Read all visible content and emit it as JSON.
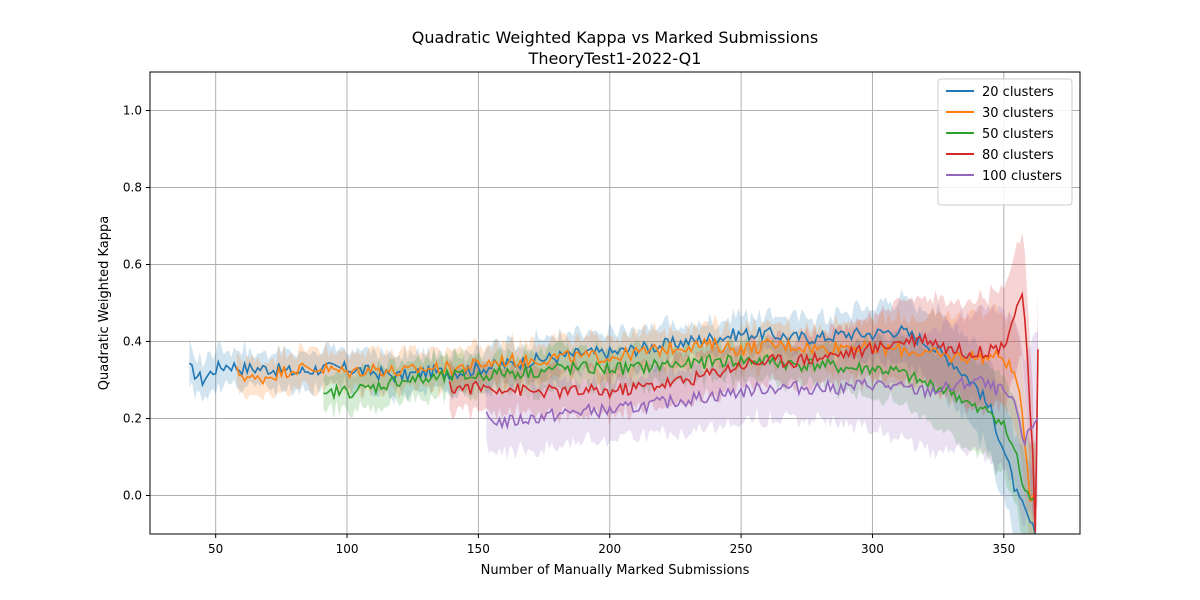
{
  "chart_data": {
    "type": "line",
    "title": "Quadratic Weighted Kappa vs Marked Submissions",
    "subtitle": "TheoryTest1-2022-Q1",
    "xlabel": "Number of Manually Marked Submissions",
    "ylabel": "Quadratic Weighted Kappa",
    "xlim": [
      25,
      379
    ],
    "ylim": [
      -0.1,
      1.1
    ],
    "xticks": [
      50,
      100,
      150,
      200,
      250,
      300,
      350
    ],
    "yticks": [
      0.0,
      0.2,
      0.4,
      0.6,
      0.8,
      1.0
    ],
    "grid": true,
    "legend_position": "top-right",
    "series": [
      {
        "name": "20 clusters",
        "color": "#1f77b4",
        "band": 0.05,
        "points": [
          [
            40,
            0.33
          ],
          [
            45,
            0.3
          ],
          [
            50,
            0.33
          ],
          [
            55,
            0.34
          ],
          [
            60,
            0.33
          ],
          [
            70,
            0.33
          ],
          [
            80,
            0.32
          ],
          [
            90,
            0.33
          ],
          [
            100,
            0.33
          ],
          [
            110,
            0.32
          ],
          [
            120,
            0.31
          ],
          [
            130,
            0.32
          ],
          [
            140,
            0.32
          ],
          [
            150,
            0.33
          ],
          [
            160,
            0.34
          ],
          [
            170,
            0.35
          ],
          [
            180,
            0.36
          ],
          [
            190,
            0.37
          ],
          [
            200,
            0.37
          ],
          [
            210,
            0.38
          ],
          [
            220,
            0.39
          ],
          [
            230,
            0.4
          ],
          [
            240,
            0.41
          ],
          [
            250,
            0.42
          ],
          [
            260,
            0.42
          ],
          [
            270,
            0.41
          ],
          [
            280,
            0.41
          ],
          [
            290,
            0.42
          ],
          [
            300,
            0.42
          ],
          [
            310,
            0.43
          ],
          [
            320,
            0.4
          ],
          [
            330,
            0.35
          ],
          [
            340,
            0.28
          ],
          [
            345,
            0.22
          ],
          [
            350,
            0.12
          ],
          [
            355,
            0.0
          ],
          [
            360,
            -0.07
          ],
          [
            362,
            -0.1
          ]
        ]
      },
      {
        "name": "30 clusters",
        "color": "#ff7f0e",
        "band": 0.05,
        "points": [
          [
            58,
            0.32
          ],
          [
            65,
            0.3
          ],
          [
            70,
            0.31
          ],
          [
            80,
            0.33
          ],
          [
            90,
            0.33
          ],
          [
            100,
            0.32
          ],
          [
            110,
            0.33
          ],
          [
            120,
            0.32
          ],
          [
            130,
            0.33
          ],
          [
            140,
            0.33
          ],
          [
            150,
            0.34
          ],
          [
            160,
            0.35
          ],
          [
            170,
            0.35
          ],
          [
            180,
            0.36
          ],
          [
            190,
            0.36
          ],
          [
            200,
            0.36
          ],
          [
            210,
            0.37
          ],
          [
            220,
            0.38
          ],
          [
            230,
            0.39
          ],
          [
            240,
            0.39
          ],
          [
            250,
            0.38
          ],
          [
            260,
            0.39
          ],
          [
            270,
            0.39
          ],
          [
            280,
            0.38
          ],
          [
            290,
            0.39
          ],
          [
            300,
            0.38
          ],
          [
            310,
            0.38
          ],
          [
            320,
            0.37
          ],
          [
            330,
            0.36
          ],
          [
            340,
            0.36
          ],
          [
            350,
            0.36
          ],
          [
            355,
            0.3
          ],
          [
            358,
            0.15
          ],
          [
            360,
            0.0
          ],
          [
            362,
            0.0
          ]
        ]
      },
      {
        "name": "50 clusters",
        "color": "#2ca02c",
        "band": 0.05,
        "points": [
          [
            91,
            0.25
          ],
          [
            95,
            0.27
          ],
          [
            100,
            0.27
          ],
          [
            110,
            0.28
          ],
          [
            120,
            0.3
          ],
          [
            130,
            0.3
          ],
          [
            140,
            0.31
          ],
          [
            150,
            0.31
          ],
          [
            160,
            0.32
          ],
          [
            170,
            0.32
          ],
          [
            180,
            0.33
          ],
          [
            190,
            0.33
          ],
          [
            200,
            0.33
          ],
          [
            210,
            0.33
          ],
          [
            220,
            0.34
          ],
          [
            230,
            0.34
          ],
          [
            240,
            0.35
          ],
          [
            250,
            0.35
          ],
          [
            260,
            0.35
          ],
          [
            270,
            0.34
          ],
          [
            280,
            0.34
          ],
          [
            290,
            0.33
          ],
          [
            300,
            0.33
          ],
          [
            310,
            0.32
          ],
          [
            320,
            0.29
          ],
          [
            330,
            0.27
          ],
          [
            340,
            0.22
          ],
          [
            345,
            0.22
          ],
          [
            350,
            0.18
          ],
          [
            355,
            0.1
          ],
          [
            358,
            0.0
          ],
          [
            362,
            0.0
          ]
        ]
      },
      {
        "name": "80 clusters",
        "color": "#d62728",
        "band": 0.06,
        "points": [
          [
            139,
            0.28
          ],
          [
            150,
            0.28
          ],
          [
            160,
            0.28
          ],
          [
            170,
            0.27
          ],
          [
            180,
            0.27
          ],
          [
            190,
            0.27
          ],
          [
            200,
            0.27
          ],
          [
            210,
            0.28
          ],
          [
            220,
            0.29
          ],
          [
            230,
            0.3
          ],
          [
            240,
            0.32
          ],
          [
            250,
            0.34
          ],
          [
            260,
            0.35
          ],
          [
            270,
            0.35
          ],
          [
            280,
            0.36
          ],
          [
            290,
            0.37
          ],
          [
            300,
            0.38
          ],
          [
            310,
            0.4
          ],
          [
            320,
            0.41
          ],
          [
            330,
            0.38
          ],
          [
            340,
            0.37
          ],
          [
            345,
            0.38
          ],
          [
            350,
            0.39
          ],
          [
            354,
            0.47
          ],
          [
            357,
            0.53
          ],
          [
            359,
            0.35
          ],
          [
            361,
            0.1
          ],
          [
            362,
            -0.1
          ],
          [
            363,
            0.38
          ]
        ]
      },
      {
        "name": "100 clusters",
        "color": "#9467bd",
        "band": 0.08,
        "points": [
          [
            153,
            0.2
          ],
          [
            160,
            0.19
          ],
          [
            170,
            0.2
          ],
          [
            180,
            0.21
          ],
          [
            190,
            0.22
          ],
          [
            200,
            0.22
          ],
          [
            210,
            0.23
          ],
          [
            220,
            0.24
          ],
          [
            230,
            0.25
          ],
          [
            240,
            0.26
          ],
          [
            250,
            0.27
          ],
          [
            260,
            0.28
          ],
          [
            270,
            0.28
          ],
          [
            280,
            0.28
          ],
          [
            290,
            0.28
          ],
          [
            300,
            0.29
          ],
          [
            310,
            0.28
          ],
          [
            320,
            0.27
          ],
          [
            330,
            0.28
          ],
          [
            340,
            0.3
          ],
          [
            345,
            0.28
          ],
          [
            350,
            0.27
          ],
          [
            355,
            0.22
          ],
          [
            358,
            0.12
          ],
          [
            360,
            0.18
          ],
          [
            363,
            0.2
          ]
        ]
      }
    ]
  }
}
